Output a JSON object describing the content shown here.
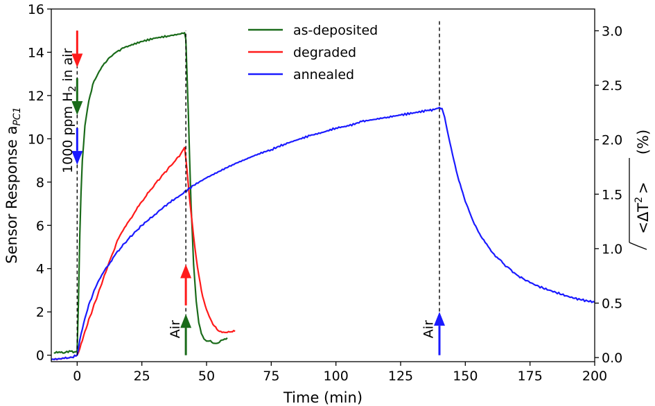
{
  "chart_data": {
    "type": "line",
    "xlabel": "Time (min)",
    "ylabel": "Sensor Response a",
    "ylabel_sub": "PC1",
    "y2label_prefix": "<ΔT",
    "y2label_sup": "2",
    "y2label_suffix": ">",
    "y2label_unit": "(%)",
    "xlim": [
      -10,
      200
    ],
    "ylim": [
      -0.3,
      16
    ],
    "y2lim": [
      -0.0375,
      3.2
    ],
    "xticks": [
      "0",
      "25",
      "50",
      "75",
      "100",
      "125",
      "150",
      "175",
      "200"
    ],
    "yticks": [
      "0",
      "2",
      "4",
      "6",
      "8",
      "10",
      "12",
      "14",
      "16"
    ],
    "y2ticks": [
      "0.0",
      "0.5",
      "1.0",
      "1.5",
      "2.0",
      "2.5",
      "3.0"
    ],
    "legend_position": "top-center",
    "series": [
      {
        "name": "as-deposited",
        "color": "#1a6b1a",
        "x": [
          -9,
          -7,
          -5,
          -3,
          -1,
          0,
          0.5,
          1,
          1.5,
          2,
          3,
          4,
          5,
          6,
          8,
          10,
          12,
          15,
          18,
          20,
          25,
          30,
          35,
          40,
          41.5,
          42,
          43,
          44,
          45,
          46,
          47,
          48,
          49,
          50,
          51,
          52,
          53,
          54,
          55,
          56,
          57,
          58
        ],
        "values": [
          0.1,
          0.15,
          0.1,
          0.2,
          0.15,
          0.2,
          2.5,
          5.5,
          7.5,
          9.0,
          10.6,
          11.4,
          12.0,
          12.5,
          13.0,
          13.4,
          13.7,
          14.0,
          14.2,
          14.3,
          14.5,
          14.65,
          14.75,
          14.85,
          14.9,
          14.6,
          11.0,
          7.0,
          4.2,
          2.5,
          1.5,
          1.0,
          0.75,
          0.65,
          0.65,
          0.6,
          0.55,
          0.55,
          0.6,
          0.7,
          0.75,
          0.8
        ]
      },
      {
        "name": "degraded",
        "color": "#ff1a1a",
        "x": [
          -9,
          -5,
          -2,
          0,
          1,
          3,
          5,
          8,
          10,
          13,
          16,
          20,
          25,
          30,
          35,
          38,
          40,
          41.5,
          42,
          43,
          44,
          45,
          46,
          47,
          48,
          49,
          50,
          51,
          52,
          53,
          54,
          55,
          56,
          57,
          58,
          59,
          60,
          61
        ],
        "values": [
          -0.2,
          -0.15,
          -0.1,
          0.0,
          0.3,
          1.1,
          1.8,
          2.8,
          3.5,
          4.5,
          5.4,
          6.2,
          7.1,
          7.9,
          8.6,
          9.0,
          9.3,
          9.6,
          9.1,
          7.8,
          6.6,
          5.5,
          4.5,
          3.7,
          3.0,
          2.5,
          2.1,
          1.8,
          1.55,
          1.35,
          1.2,
          1.1,
          1.05,
          1.05,
          1.05,
          1.07,
          1.08,
          1.1
        ]
      },
      {
        "name": "annealed",
        "color": "#1a1aff",
        "x": [
          -10,
          -5,
          -2,
          0,
          0.5,
          1,
          2,
          3,
          4,
          5,
          7,
          10,
          15,
          20,
          25,
          30,
          35,
          40,
          45,
          50,
          55,
          60,
          65,
          70,
          75,
          80,
          85,
          90,
          95,
          100,
          105,
          110,
          115,
          120,
          125,
          130,
          135,
          138,
          139,
          140,
          141,
          142,
          143,
          145,
          147,
          150,
          153,
          156,
          160,
          165,
          170,
          175,
          180,
          185,
          190,
          195,
          200
        ],
        "values": [
          -0.2,
          -0.15,
          -0.1,
          0.0,
          0.3,
          0.7,
          1.2,
          1.7,
          2.1,
          2.5,
          3.1,
          3.8,
          4.7,
          5.4,
          6.0,
          6.5,
          7.0,
          7.4,
          7.85,
          8.2,
          8.5,
          8.8,
          9.05,
          9.3,
          9.5,
          9.75,
          9.95,
          10.15,
          10.3,
          10.5,
          10.6,
          10.8,
          10.9,
          11.0,
          11.1,
          11.2,
          11.3,
          11.35,
          11.4,
          11.45,
          11.4,
          11.0,
          10.4,
          9.3,
          8.3,
          7.1,
          6.2,
          5.5,
          4.8,
          4.2,
          3.7,
          3.35,
          3.1,
          2.9,
          2.7,
          2.55,
          2.45
        ]
      }
    ],
    "vlines": [
      {
        "x": 0,
        "from": 0,
        "to": 15
      },
      {
        "x": 42,
        "from": 0,
        "to": 15
      },
      {
        "x": 140,
        "from": 0,
        "to": 15.5
      }
    ],
    "arrows": [
      {
        "x": 0,
        "from": 15,
        "to": 13.3,
        "dir": "down",
        "color": "#ff1a1a"
      },
      {
        "x": 0,
        "from": 12.8,
        "to": 11.1,
        "dir": "down",
        "color": "#1a6b1a"
      },
      {
        "x": 0,
        "from": 10.5,
        "to": 8.8,
        "dir": "down",
        "color": "#1a1aff"
      },
      {
        "x": 42,
        "from": 0,
        "to": 1.9,
        "dir": "up",
        "color": "#1a6b1a"
      },
      {
        "x": 42,
        "from": 2.3,
        "to": 4.2,
        "dir": "up",
        "color": "#ff1a1a"
      },
      {
        "x": 140,
        "from": 0,
        "to": 2.0,
        "dir": "up",
        "color": "#1a1aff"
      }
    ],
    "annotations": [
      {
        "text": "1000 ppm H",
        "sub": "2",
        "suffix": " in air",
        "x": -2,
        "y": 11.3,
        "rotate": -90
      },
      {
        "text": "Air",
        "x": 39.5,
        "y": 1.2,
        "rotate": -90
      },
      {
        "text": "Air",
        "x": 137.5,
        "y": 1.2,
        "rotate": -90
      }
    ]
  }
}
